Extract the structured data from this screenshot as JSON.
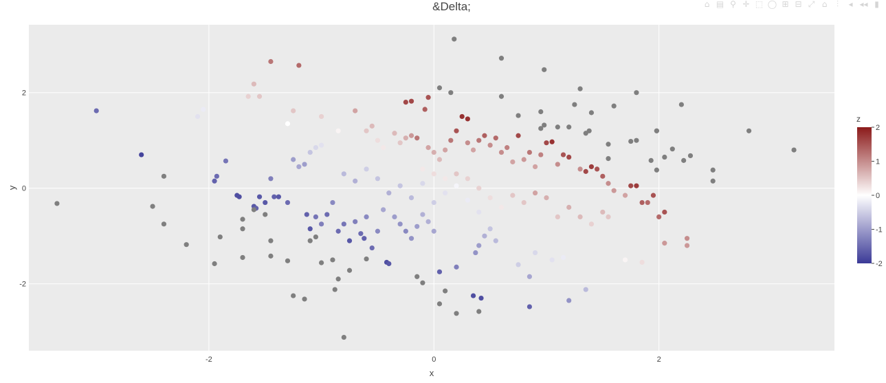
{
  "modebar": {
    "buttons": [
      "camera-icon",
      "save-icon",
      "zoom-icon",
      "pan-icon",
      "box-select-icon",
      "lasso-select-icon",
      "zoom-in-icon",
      "zoom-out-icon",
      "autoscale-icon",
      "reset-axes-icon",
      "spike-lines-icon",
      "hover-closest-icon",
      "hover-compare-icon",
      "plotly-logo-icon"
    ],
    "glyphs": [
      "⌂",
      "▤",
      "⚲",
      "✛",
      "⬚",
      "◯",
      "⊞",
      "⊟",
      "⤢",
      "⌂",
      "⫶",
      "◂",
      "◂◂",
      "▮"
    ]
  },
  "chart_data": {
    "type": "scatter",
    "title": "&Delta;",
    "xlabel": "x",
    "ylabel": "y",
    "xlim": [
      -3.6,
      3.56
    ],
    "ylim": [
      -3.4,
      3.42
    ],
    "xticks": [
      -2,
      0,
      2
    ],
    "xtick_labels": [
      "-2",
      "0",
      "2"
    ],
    "yticks": [
      -2,
      0,
      2
    ],
    "ytick_labels": [
      "-2",
      "0",
      "2"
    ],
    "grid": true,
    "plot_background": "#ebebeb",
    "grid_color": "#ffffff",
    "na_color": "#7f7f7f",
    "colorbar": {
      "title": "z",
      "range": [
        -2,
        2
      ],
      "ticks": [
        2,
        1,
        0,
        -1,
        -2
      ],
      "tick_labels": [
        "2",
        "1",
        "0",
        "-1",
        "-2"
      ],
      "colors": [
        "#3b3a97",
        "#ffffff",
        "#8b1a1a"
      ],
      "position": "right"
    },
    "series": [
      {
        "points": [
          [
            -3.0,
            1.62,
            -1.5
          ],
          [
            -2.6,
            0.7,
            -1.9
          ],
          [
            -2.1,
            1.5,
            -0.3
          ],
          [
            -2.05,
            1.65,
            -0.2
          ],
          [
            -1.95,
            0.15,
            -1.6
          ],
          [
            -1.93,
            0.25,
            -1.5
          ],
          [
            -1.85,
            0.57,
            -1.4
          ],
          [
            -1.75,
            -0.15,
            -1.8
          ],
          [
            -1.73,
            -0.18,
            -1.8
          ],
          [
            -1.6,
            -0.38,
            -1.7
          ],
          [
            -1.58,
            -0.42,
            -1.6
          ],
          [
            -1.55,
            -0.18,
            -1.7
          ],
          [
            -1.5,
            -0.3,
            -1.7
          ],
          [
            -1.45,
            0.2,
            -1.3
          ],
          [
            -1.42,
            -0.18,
            -1.6
          ],
          [
            -1.38,
            -0.18,
            -1.7
          ],
          [
            -1.3,
            -0.3,
            -1.5
          ],
          [
            -1.25,
            0.6,
            -1.0
          ],
          [
            -1.2,
            0.45,
            -0.9
          ],
          [
            -1.15,
            0.5,
            -1.0
          ],
          [
            -1.1,
            0.75,
            -0.6
          ],
          [
            -1.05,
            0.85,
            -0.4
          ],
          [
            -1.0,
            0.9,
            -0.3
          ],
          [
            -1.13,
            -0.55,
            -1.6
          ],
          [
            -1.1,
            -0.85,
            -1.7
          ],
          [
            -1.05,
            -0.6,
            -1.4
          ],
          [
            -1.0,
            -0.75,
            -1.3
          ],
          [
            -0.95,
            -0.55,
            -1.5
          ],
          [
            -0.9,
            -0.3,
            -1.2
          ],
          [
            -0.85,
            -0.9,
            -1.5
          ],
          [
            -0.8,
            -0.75,
            -1.4
          ],
          [
            -0.75,
            -1.1,
            -1.7
          ],
          [
            -0.7,
            -0.7,
            -1.3
          ],
          [
            -0.65,
            -0.95,
            -1.5
          ],
          [
            -0.62,
            -1.05,
            -1.6
          ],
          [
            -0.6,
            -0.6,
            -1.2
          ],
          [
            -0.55,
            -1.25,
            -1.5
          ],
          [
            -0.5,
            -0.9,
            -1.2
          ],
          [
            -0.45,
            -0.45,
            -0.9
          ],
          [
            -0.42,
            -1.55,
            -1.8
          ],
          [
            -0.4,
            -1.58,
            -1.7
          ],
          [
            -0.35,
            -0.6,
            -1.0
          ],
          [
            -0.3,
            -0.75,
            -1.1
          ],
          [
            -0.25,
            -0.9,
            -1.2
          ],
          [
            -0.2,
            -1.05,
            -1.1
          ],
          [
            -0.15,
            -0.8,
            -1.0
          ],
          [
            -0.1,
            -0.55,
            -0.8
          ],
          [
            -0.05,
            -0.7,
            -0.8
          ],
          [
            0.0,
            -0.9,
            -0.9
          ],
          [
            0.05,
            -1.75,
            -1.6
          ],
          [
            0.2,
            -1.65,
            -1.3
          ],
          [
            0.35,
            -2.25,
            -1.8
          ],
          [
            0.42,
            -2.3,
            -1.8
          ],
          [
            0.37,
            -1.35,
            -1.1
          ],
          [
            0.4,
            -1.2,
            -1.0
          ],
          [
            0.45,
            -1.0,
            -0.8
          ],
          [
            0.5,
            -0.85,
            -0.6
          ],
          [
            0.55,
            -1.1,
            -0.7
          ],
          [
            0.85,
            -1.85,
            -0.9
          ],
          [
            0.85,
            -2.48,
            -1.6
          ],
          [
            1.2,
            -2.35,
            -1.1
          ],
          [
            1.35,
            -2.12,
            -0.7
          ],
          [
            0.75,
            -1.6,
            -0.5
          ],
          [
            0.9,
            -1.35,
            -0.4
          ],
          [
            1.05,
            -1.5,
            -0.3
          ],
          [
            1.15,
            -1.45,
            -0.2
          ],
          [
            -0.8,
            0.3,
            -0.7
          ],
          [
            -0.7,
            0.15,
            -0.8
          ],
          [
            -0.6,
            0.4,
            -0.5
          ],
          [
            -0.5,
            0.2,
            -0.6
          ],
          [
            -0.4,
            -0.1,
            -0.8
          ],
          [
            -0.3,
            0.05,
            -0.6
          ],
          [
            -0.2,
            -0.2,
            -0.7
          ],
          [
            -0.1,
            0.1,
            -0.4
          ],
          [
            0.0,
            -0.3,
            -0.5
          ],
          [
            0.1,
            -0.1,
            -0.3
          ],
          [
            0.2,
            0.05,
            -0.1
          ],
          [
            0.3,
            -0.25,
            -0.2
          ],
          [
            0.4,
            -0.5,
            -0.3
          ],
          [
            -1.3,
            1.35,
            0.0
          ],
          [
            -1.0,
            1.5,
            0.4
          ],
          [
            -0.85,
            1.2,
            0.1
          ],
          [
            -0.7,
            1.62,
            0.8
          ],
          [
            -0.6,
            1.2,
            0.5
          ],
          [
            -0.55,
            1.3,
            0.6
          ],
          [
            -0.5,
            1.0,
            0.3
          ],
          [
            -0.45,
            0.85,
            0.2
          ],
          [
            -0.35,
            1.15,
            0.6
          ],
          [
            -0.3,
            0.95,
            0.5
          ],
          [
            -0.25,
            1.05,
            0.7
          ],
          [
            -0.2,
            1.1,
            0.9
          ],
          [
            -0.15,
            1.05,
            1.2
          ],
          [
            -0.25,
            1.8,
            1.6
          ],
          [
            -0.2,
            1.82,
            1.6
          ],
          [
            -0.08,
            1.65,
            1.4
          ],
          [
            -0.05,
            1.9,
            1.5
          ],
          [
            -0.05,
            0.85,
            0.8
          ],
          [
            0.0,
            0.75,
            0.7
          ],
          [
            0.05,
            0.6,
            0.6
          ],
          [
            0.1,
            0.8,
            0.8
          ],
          [
            0.15,
            1.0,
            1.2
          ],
          [
            0.2,
            1.2,
            1.5
          ],
          [
            0.25,
            1.5,
            1.8
          ],
          [
            0.3,
            1.45,
            1.8
          ],
          [
            0.3,
            0.95,
            1.0
          ],
          [
            0.35,
            0.8,
            0.8
          ],
          [
            0.4,
            1.0,
            1.2
          ],
          [
            0.45,
            1.1,
            1.4
          ],
          [
            0.5,
            0.9,
            1.0
          ],
          [
            0.55,
            1.05,
            1.3
          ],
          [
            0.6,
            0.75,
            1.0
          ],
          [
            0.65,
            0.85,
            1.1
          ],
          [
            0.7,
            0.55,
            0.8
          ],
          [
            0.75,
            1.1,
            1.6
          ],
          [
            0.8,
            0.6,
            0.9
          ],
          [
            0.85,
            0.75,
            1.2
          ],
          [
            0.9,
            0.45,
            0.8
          ],
          [
            0.95,
            0.7,
            1.1
          ],
          [
            1.0,
            0.95,
            1.6
          ],
          [
            1.05,
            0.97,
            1.8
          ],
          [
            1.1,
            0.5,
            1.0
          ],
          [
            1.15,
            0.7,
            1.5
          ],
          [
            1.2,
            0.65,
            1.6
          ],
          [
            1.3,
            0.4,
            1.0
          ],
          [
            1.35,
            0.35,
            1.6
          ],
          [
            1.4,
            0.45,
            1.7
          ],
          [
            1.45,
            0.4,
            1.5
          ],
          [
            1.5,
            0.25,
            1.4
          ],
          [
            1.55,
            0.1,
            1.0
          ],
          [
            1.6,
            -0.05,
            0.9
          ],
          [
            1.7,
            -0.15,
            0.8
          ],
          [
            1.75,
            0.05,
            1.6
          ],
          [
            1.8,
            0.05,
            1.7
          ],
          [
            1.85,
            -0.3,
            1.4
          ],
          [
            1.9,
            -0.3,
            1.3
          ],
          [
            1.95,
            -0.15,
            1.5
          ],
          [
            2.0,
            -0.6,
            1.3
          ],
          [
            2.05,
            -0.5,
            1.5
          ],
          [
            2.05,
            -1.15,
            0.9
          ],
          [
            2.25,
            -1.05,
            1.0
          ],
          [
            2.25,
            -1.2,
            0.9
          ],
          [
            1.85,
            -1.55,
            0.3
          ],
          [
            1.7,
            -1.5,
            0.1
          ],
          [
            1.55,
            -0.6,
            0.5
          ],
          [
            1.5,
            -0.5,
            0.6
          ],
          [
            1.4,
            -0.75,
            0.4
          ],
          [
            1.3,
            -0.6,
            0.6
          ],
          [
            1.2,
            -0.4,
            0.7
          ],
          [
            1.1,
            -0.6,
            0.5
          ],
          [
            1.0,
            -0.2,
            0.7
          ],
          [
            0.9,
            -0.1,
            0.8
          ],
          [
            0.8,
            -0.3,
            0.5
          ],
          [
            0.7,
            -0.15,
            0.5
          ],
          [
            0.6,
            -0.4,
            0.2
          ],
          [
            0.5,
            -0.2,
            0.3
          ],
          [
            0.4,
            0.0,
            0.4
          ],
          [
            0.3,
            0.2,
            0.4
          ],
          [
            0.2,
            0.3,
            0.5
          ],
          [
            0.1,
            0.2,
            0.2
          ],
          [
            0.0,
            0.3,
            0.3
          ],
          [
            -0.1,
            0.4,
            0.2
          ],
          [
            -1.65,
            1.92,
            0.4
          ],
          [
            -1.6,
            2.18,
            0.6
          ],
          [
            -1.55,
            1.92,
            0.5
          ],
          [
            -1.45,
            2.65,
            1.2
          ],
          [
            -1.2,
            2.57,
            1.3
          ],
          [
            -1.25,
            1.62,
            0.5
          ],
          [
            -3.35,
            -0.32,
            null
          ],
          [
            -2.5,
            -0.38,
            null
          ],
          [
            -2.4,
            0.25,
            null
          ],
          [
            -2.4,
            -0.75,
            null
          ],
          [
            -2.2,
            -1.18,
            null
          ],
          [
            -1.95,
            -1.58,
            null
          ],
          [
            -1.9,
            -1.02,
            null
          ],
          [
            -1.7,
            -0.65,
            null
          ],
          [
            -1.7,
            -1.45,
            null
          ],
          [
            -1.7,
            -0.85,
            null
          ],
          [
            -1.6,
            -0.45,
            null
          ],
          [
            -1.5,
            -0.55,
            null
          ],
          [
            -1.45,
            -1.1,
            null
          ],
          [
            -1.45,
            -1.42,
            null
          ],
          [
            -1.3,
            -1.52,
            null
          ],
          [
            -1.25,
            -2.25,
            null
          ],
          [
            -1.15,
            -2.32,
            null
          ],
          [
            -1.1,
            -1.1,
            null
          ],
          [
            -1.05,
            -1.02,
            null
          ],
          [
            -1.0,
            -1.56,
            null
          ],
          [
            -0.9,
            -1.5,
            null
          ],
          [
            -0.88,
            -2.12,
            null
          ],
          [
            -0.85,
            -1.9,
            null
          ],
          [
            -0.8,
            -3.12,
            null
          ],
          [
            -0.75,
            -1.72,
            null
          ],
          [
            -0.6,
            -1.48,
            null
          ],
          [
            -0.15,
            -1.85,
            null
          ],
          [
            -0.1,
            -1.98,
            null
          ],
          [
            0.05,
            -2.42,
            null
          ],
          [
            0.1,
            -2.15,
            null
          ],
          [
            0.2,
            -2.62,
            null
          ],
          [
            0.4,
            -2.58,
            null
          ],
          [
            0.18,
            3.12,
            null
          ],
          [
            0.6,
            2.72,
            null
          ],
          [
            0.98,
            2.48,
            null
          ],
          [
            0.05,
            2.1,
            null
          ],
          [
            0.15,
            2.0,
            null
          ],
          [
            0.6,
            1.92,
            null
          ],
          [
            0.75,
            1.52,
            null
          ],
          [
            0.95,
            1.6,
            null
          ],
          [
            0.95,
            1.25,
            null
          ],
          [
            0.98,
            1.32,
            null
          ],
          [
            1.1,
            1.28,
            null
          ],
          [
            1.2,
            1.28,
            null
          ],
          [
            1.25,
            1.75,
            null
          ],
          [
            1.3,
            2.08,
            null
          ],
          [
            1.35,
            1.15,
            null
          ],
          [
            1.38,
            1.2,
            null
          ],
          [
            1.4,
            1.58,
            null
          ],
          [
            1.55,
            0.92,
            null
          ],
          [
            1.6,
            1.72,
            null
          ],
          [
            1.55,
            0.62,
            null
          ],
          [
            1.75,
            0.98,
            null
          ],
          [
            1.8,
            2.0,
            null
          ],
          [
            1.8,
            1.0,
            null
          ],
          [
            1.93,
            0.58,
            null
          ],
          [
            1.98,
            1.2,
            null
          ],
          [
            1.98,
            1.2,
            null
          ],
          [
            1.98,
            0.38,
            null
          ],
          [
            2.05,
            0.65,
            null
          ],
          [
            2.12,
            0.82,
            null
          ],
          [
            2.2,
            1.75,
            null
          ],
          [
            2.22,
            0.58,
            null
          ],
          [
            2.28,
            0.68,
            null
          ],
          [
            2.48,
            0.38,
            null
          ],
          [
            2.48,
            0.15,
            null
          ],
          [
            2.8,
            1.2,
            null
          ],
          [
            3.2,
            0.8,
            null
          ]
        ]
      }
    ]
  }
}
